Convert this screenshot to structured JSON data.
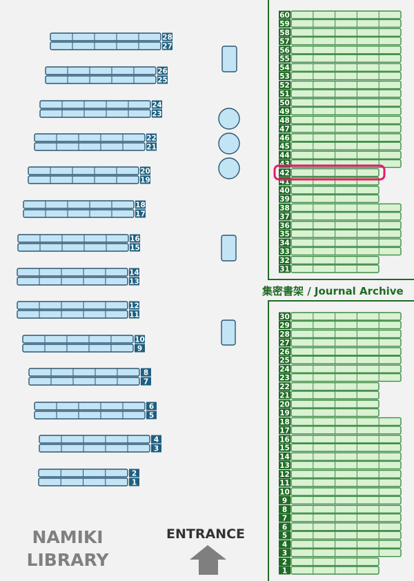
{
  "library_name": {
    "line1": "NAMIKI",
    "line2": "LIBRARY"
  },
  "entrance_label": "ENTRANCE",
  "archive_label": "集密書架 / Journal Archive",
  "highlighted_shelf": "42",
  "colors": {
    "background": "#f2f2f2",
    "general_shelf_fill": "#c2e4f5",
    "general_shelf_stroke": "#2a5570",
    "general_label_bg": "#1d5f80",
    "archive_shelf_fill": "#d9f2d2",
    "archive_shelf_stroke": "#3f8a47",
    "archive_label_bg": "#1e6b24",
    "highlight": "#e8196b",
    "entrance_arrow": "#7f7f7f"
  },
  "general_shelves": [
    {
      "top": "28",
      "bottom": "27",
      "cells": 5
    },
    {
      "top": "26",
      "bottom": "25",
      "cells": 5
    },
    {
      "top": "24",
      "bottom": "23",
      "cells": 5
    },
    {
      "top": "22",
      "bottom": "21",
      "cells": 5
    },
    {
      "top": "20",
      "bottom": "19",
      "cells": 5
    },
    {
      "top": "18",
      "bottom": "17",
      "cells": 5
    },
    {
      "top": "16",
      "bottom": "15",
      "cells": 5
    },
    {
      "top": "14",
      "bottom": "13",
      "cells": 5
    },
    {
      "top": "12",
      "bottom": "11",
      "cells": 5
    },
    {
      "top": "10",
      "bottom": "9",
      "cells": 5
    },
    {
      "top": "8",
      "bottom": "7",
      "cells": 5
    },
    {
      "top": "6",
      "bottom": "5",
      "cells": 5
    },
    {
      "top": "4",
      "bottom": "3",
      "cells": 5
    },
    {
      "top": "2",
      "bottom": "1",
      "cells": 4
    }
  ],
  "archive_upper": [
    {
      "top": "60",
      "bottom": "59",
      "cells": 5
    },
    {
      "top": "58",
      "bottom": "57",
      "cells": 5
    },
    {
      "top": "56",
      "bottom": "55",
      "cells": 5
    },
    {
      "top": "54",
      "bottom": "53",
      "cells": 5
    },
    {
      "top": "52",
      "bottom": "51",
      "cells": 5
    },
    {
      "top": "50",
      "bottom": "49",
      "cells": 5
    },
    {
      "top": "48",
      "bottom": "47",
      "cells": 5
    },
    {
      "top": "46",
      "bottom": "45",
      "cells": 5
    },
    {
      "top": "44",
      "bottom": "43",
      "cells": 5
    },
    {
      "top": "42",
      "bottom": "41",
      "cells": 4
    },
    {
      "top": "40",
      "bottom": "39",
      "cells": 4
    },
    {
      "top": "38",
      "bottom": "37",
      "cells": 5
    },
    {
      "top": "36",
      "bottom": "35",
      "cells": 5
    },
    {
      "top": "34",
      "bottom": "33",
      "cells": 5
    },
    {
      "top": "32",
      "bottom": "31",
      "cells": 4
    }
  ],
  "archive_lower": [
    {
      "top": "30",
      "bottom": "29",
      "cells": 5
    },
    {
      "top": "28",
      "bottom": "27",
      "cells": 5
    },
    {
      "top": "26",
      "bottom": "25",
      "cells": 5
    },
    {
      "top": "24",
      "bottom": "23",
      "cells": 5
    },
    {
      "top": "22",
      "bottom": "21",
      "cells": 4
    },
    {
      "top": "20",
      "bottom": "19",
      "cells": 4
    },
    {
      "top": "18",
      "bottom": "17",
      "cells": 5
    },
    {
      "top": "16",
      "bottom": "15",
      "cells": 5
    },
    {
      "top": "14",
      "bottom": "13",
      "cells": 5
    },
    {
      "top": "12",
      "bottom": "11",
      "cells": 5
    },
    {
      "top": "10",
      "bottom": "9",
      "cells": 5
    },
    {
      "top": "8",
      "bottom": "7",
      "cells": 5
    },
    {
      "top": "6",
      "bottom": "5",
      "cells": 5
    },
    {
      "top": "4",
      "bottom": "3",
      "cells": 5
    },
    {
      "top": "2",
      "bottom": "1",
      "cells": 4
    }
  ]
}
